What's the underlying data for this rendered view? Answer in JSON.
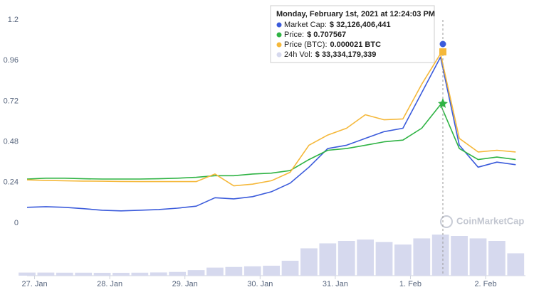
{
  "chart_data": {
    "type": "line",
    "x": [
      -0.1,
      0.15,
      0.4,
      0.65,
      0.9,
      1.15,
      1.4,
      1.65,
      1.9,
      2.15,
      2.4,
      2.65,
      2.9,
      3.15,
      3.4,
      3.65,
      3.9,
      4.15,
      4.4,
      4.65,
      4.9,
      5.15,
      5.4,
      5.65,
      5.9,
      6.15,
      6.4
    ],
    "xlim": [
      -0.1,
      6.53
    ],
    "xticks": [
      {
        "value": 0,
        "label": "27. Jan"
      },
      {
        "value": 1,
        "label": "28. Jan"
      },
      {
        "value": 2,
        "label": "29. Jan"
      },
      {
        "value": 3,
        "label": "30. Jan"
      },
      {
        "value": 4,
        "label": "31. Jan"
      },
      {
        "value": 5,
        "label": "1. Feb"
      },
      {
        "value": 6,
        "label": "2. Feb"
      }
    ],
    "ylim": [
      0,
      1.2
    ],
    "yticks": [
      0,
      0.24,
      0.48,
      0.72,
      0.96,
      1.2
    ],
    "y2lim": [
      0,
      40000000000
    ],
    "series": [
      {
        "name": "Market Cap:",
        "color": "#3b5bdb",
        "values": [
          0.093,
          0.097,
          0.093,
          0.085,
          0.076,
          0.072,
          0.076,
          0.08,
          0.088,
          0.1,
          0.15,
          0.143,
          0.156,
          0.185,
          0.236,
          0.33,
          0.44,
          0.46,
          0.5,
          0.54,
          0.56,
          0.77,
          0.98,
          0.46,
          0.33,
          0.36,
          0.345
        ]
      },
      {
        "name": "Price:",
        "color": "#2fb344",
        "values": [
          0.26,
          0.265,
          0.265,
          0.262,
          0.26,
          0.26,
          0.26,
          0.262,
          0.265,
          0.27,
          0.28,
          0.28,
          0.29,
          0.295,
          0.31,
          0.375,
          0.43,
          0.44,
          0.46,
          0.48,
          0.49,
          0.56,
          0.7,
          0.44,
          0.375,
          0.39,
          0.375
        ]
      },
      {
        "name": "Price (BTC):",
        "color": "#f5b83a",
        "values": [
          0.255,
          0.252,
          0.25,
          0.248,
          0.247,
          0.246,
          0.245,
          0.245,
          0.245,
          0.245,
          0.29,
          0.22,
          0.23,
          0.25,
          0.3,
          0.46,
          0.52,
          0.56,
          0.64,
          0.61,
          0.615,
          0.82,
          1.0,
          0.5,
          0.42,
          0.43,
          0.42
        ]
      },
      {
        "name": "24h Vol:",
        "color": "#d6d9ee",
        "axis": "y2",
        "values": [
          2500000000,
          2500000000,
          2400000000,
          2400000000,
          2300000000,
          2300000000,
          2400000000,
          2600000000,
          3000000000,
          4500000000,
          6500000000,
          7000000000,
          7500000000,
          8000000000,
          12000000000,
          22000000000,
          26000000000,
          28000000000,
          29000000000,
          27000000000,
          25000000000,
          30000000000,
          33000000000,
          32000000000,
          30000000000,
          28000000000,
          18000000000
        ]
      }
    ],
    "tooltip": {
      "title": "Monday, February 1st, 2021 at 12:24:03 PM",
      "items": [
        "$ 32,126,406,441",
        "$ 0.707567",
        "0.000021 BTC",
        "$ 33,334,179,339"
      ]
    },
    "watermark": "CoinMarketCap"
  }
}
